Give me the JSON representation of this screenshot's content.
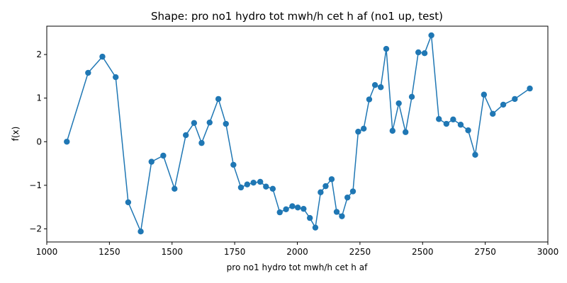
{
  "chart_data": {
    "type": "line",
    "title": "Shape: pro no1 hydro tot mwh/h cet h af (no1 up, test)",
    "xlabel": "pro no1 hydro tot mwh/h cet h af",
    "ylabel": "f(x)",
    "xlim": [
      1000,
      3000
    ],
    "ylim": [
      -2.3,
      2.65
    ],
    "xticks": [
      1000,
      1250,
      1500,
      1750,
      2000,
      2250,
      2500,
      2750,
      3000
    ],
    "yticks": [
      -2,
      -1,
      0,
      1,
      2
    ],
    "grid": false,
    "marker": "circle",
    "color": "#1f77b4",
    "series": [
      {
        "x": [
          1080,
          1165,
          1222,
          1275,
          1325,
          1375,
          1418,
          1465,
          1510,
          1555,
          1588,
          1618,
          1650,
          1685,
          1715,
          1745,
          1775,
          1800,
          1825,
          1852,
          1875,
          1902,
          1930,
          1955,
          1980,
          2002,
          2025,
          2050,
          2072,
          2093,
          2113,
          2137,
          2157,
          2178,
          2200,
          2222,
          2243,
          2265,
          2287,
          2310,
          2333,
          2355,
          2380,
          2405,
          2432,
          2457,
          2483,
          2508,
          2535,
          2565,
          2595,
          2622,
          2652,
          2682,
          2710,
          2745,
          2780,
          2822,
          2868,
          2928
        ],
        "y": [
          0.0,
          1.58,
          1.95,
          1.48,
          -1.39,
          -2.06,
          -0.46,
          -0.32,
          -1.08,
          0.15,
          0.43,
          -0.03,
          0.44,
          0.98,
          0.41,
          -0.53,
          -1.05,
          -0.98,
          -0.94,
          -0.92,
          -1.03,
          -1.08,
          -1.62,
          -1.55,
          -1.48,
          -1.51,
          -1.54,
          -1.75,
          -1.97,
          -1.16,
          -1.02,
          -0.86,
          -1.61,
          -1.71,
          -1.28,
          -1.14,
          0.23,
          0.3,
          0.97,
          1.3,
          1.25,
          2.13,
          0.25,
          0.88,
          0.22,
          1.03,
          2.05,
          2.03,
          2.44,
          0.52,
          0.41,
          0.51,
          0.39,
          0.26,
          -0.3,
          1.08,
          0.64,
          0.85,
          0.98,
          1.22
        ]
      }
    ]
  }
}
